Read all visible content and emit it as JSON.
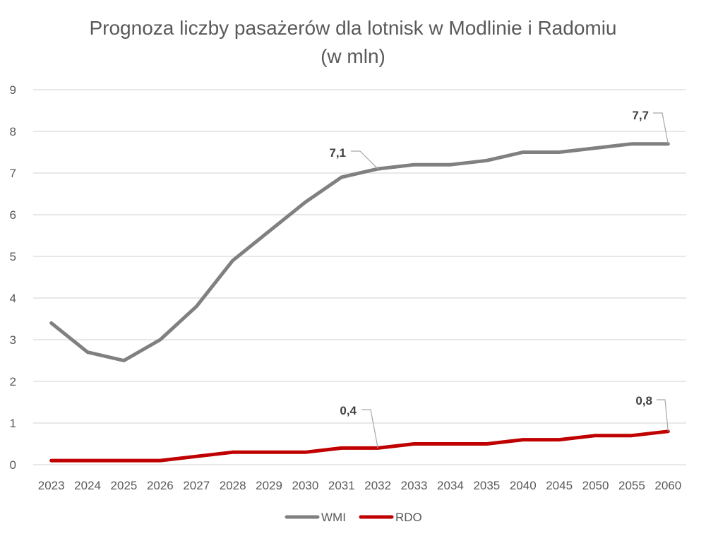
{
  "chart_data": {
    "type": "line",
    "title": "Prognoza liczby pasażerów dla lotnisk w Modlinie i Radomiu",
    "subtitle": "(w mln)",
    "categories": [
      "2023",
      "2024",
      "2025",
      "2026",
      "2027",
      "2028",
      "2029",
      "2030",
      "2031",
      "2032",
      "2033",
      "2034",
      "2035",
      "2040",
      "2045",
      "2050",
      "2055",
      "2060"
    ],
    "series": [
      {
        "name": "WMI",
        "color": "#808080",
        "values": [
          3.4,
          2.7,
          2.5,
          3.0,
          3.8,
          4.9,
          5.6,
          6.3,
          6.9,
          7.1,
          7.2,
          7.2,
          7.3,
          7.5,
          7.5,
          7.6,
          7.7,
          7.7
        ]
      },
      {
        "name": "RDO",
        "color": "#C00000",
        "values": [
          0.1,
          0.1,
          0.1,
          0.1,
          0.2,
          0.3,
          0.3,
          0.3,
          0.4,
          0.4,
          0.5,
          0.5,
          0.5,
          0.6,
          0.6,
          0.7,
          0.7,
          0.8
        ]
      }
    ],
    "ylim": [
      0,
      9
    ],
    "yticks": [
      "0",
      "1",
      "2",
      "3",
      "4",
      "5",
      "6",
      "7",
      "8",
      "9"
    ],
    "grid": true,
    "legend_position": "bottom",
    "annotations": [
      {
        "series": "WMI",
        "category": "2032",
        "text": "7,1"
      },
      {
        "series": "WMI",
        "category": "2060",
        "text": "7,7"
      },
      {
        "series": "RDO",
        "category": "2032",
        "text": "0,4"
      },
      {
        "series": "RDO",
        "category": "2060",
        "text": "0,8"
      }
    ]
  }
}
